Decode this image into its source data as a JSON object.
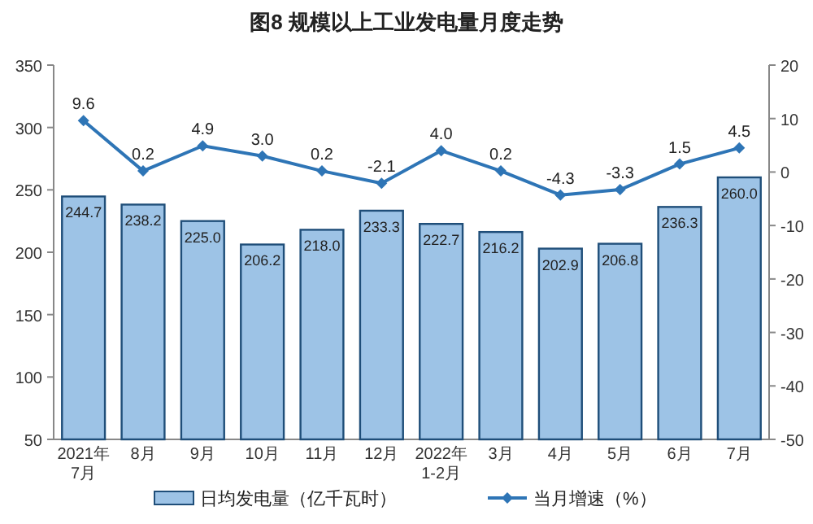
{
  "chart_data": {
    "type": "bar",
    "title": "图8  规模以上工业发电量月度走势",
    "categories": [
      "2021年\n7月",
      "8月",
      "9月",
      "10月",
      "11月",
      "12月",
      "2022年\n1-2月",
      "3月",
      "4月",
      "5月",
      "6月",
      "7月"
    ],
    "series": [
      {
        "name": "日均发电量（亿千瓦时）",
        "color": "#9dc3e6",
        "values": [
          244.7,
          238.2,
          225.0,
          206.2,
          218.0,
          233.3,
          222.7,
          216.2,
          202.9,
          206.8,
          236.3,
          260.0
        ],
        "value_labels": [
          "244.7",
          "238.2",
          "225.0",
          "206.2",
          "218.0",
          "233.3",
          "222.7",
          "216.2",
          "202.9",
          "206.8",
          "236.3",
          "260.0"
        ]
      },
      {
        "name": "当月增速（%）",
        "type": "line",
        "axis": "y2",
        "color": "#2e75b6",
        "marker": "diamond",
        "values": [
          9.6,
          0.2,
          4.9,
          3.0,
          0.2,
          -2.1,
          4.0,
          0.2,
          -4.3,
          -3.3,
          1.5,
          4.5
        ],
        "value_labels": [
          "9.6",
          "0.2",
          "4.9",
          "3.0",
          "0.2",
          "-2.1",
          "4.0",
          "0.2",
          "-4.3",
          "-3.3",
          "1.5",
          "4.5"
        ]
      }
    ],
    "ylim": [
      50,
      350
    ],
    "yticks": [
      50,
      100,
      150,
      200,
      250,
      300,
      350
    ],
    "y2lim": [
      -50,
      20
    ],
    "y2ticks": [
      -50,
      -40,
      -30,
      -20,
      -10,
      0,
      10,
      20
    ],
    "legend": "bottom",
    "grid": false
  }
}
